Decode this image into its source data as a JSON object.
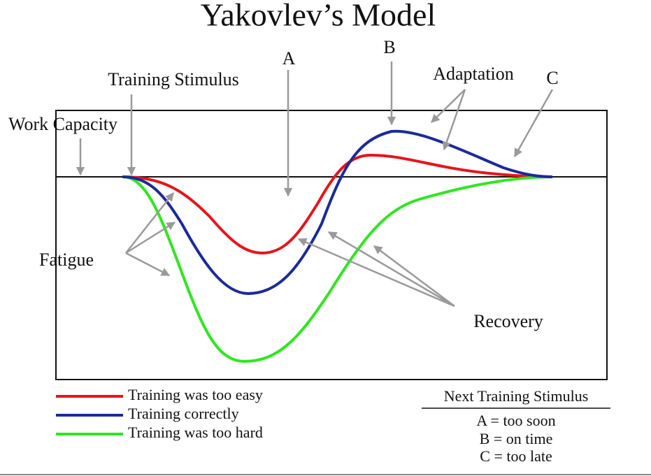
{
  "title": "Yakovlev’s Model",
  "labels": {
    "a": "A",
    "b": "B",
    "c": "C",
    "adaptation": "Adaptation",
    "training_stimulus": "Training Stimulus",
    "work_capacity": "Work Capacity",
    "fatigue": "Fatigue",
    "recovery": "Recovery"
  },
  "legend": [
    {
      "label": "Training was too easy",
      "color": "#e8141b"
    },
    {
      "label": "Training correctly",
      "color": "#1b2a9c"
    },
    {
      "label": "Training was too hard",
      "color": "#2ee81f"
    }
  ],
  "key": {
    "title": "Next Training Stimulus",
    "items": [
      "A = too soon",
      "B = on time",
      "C = too late"
    ]
  }
}
